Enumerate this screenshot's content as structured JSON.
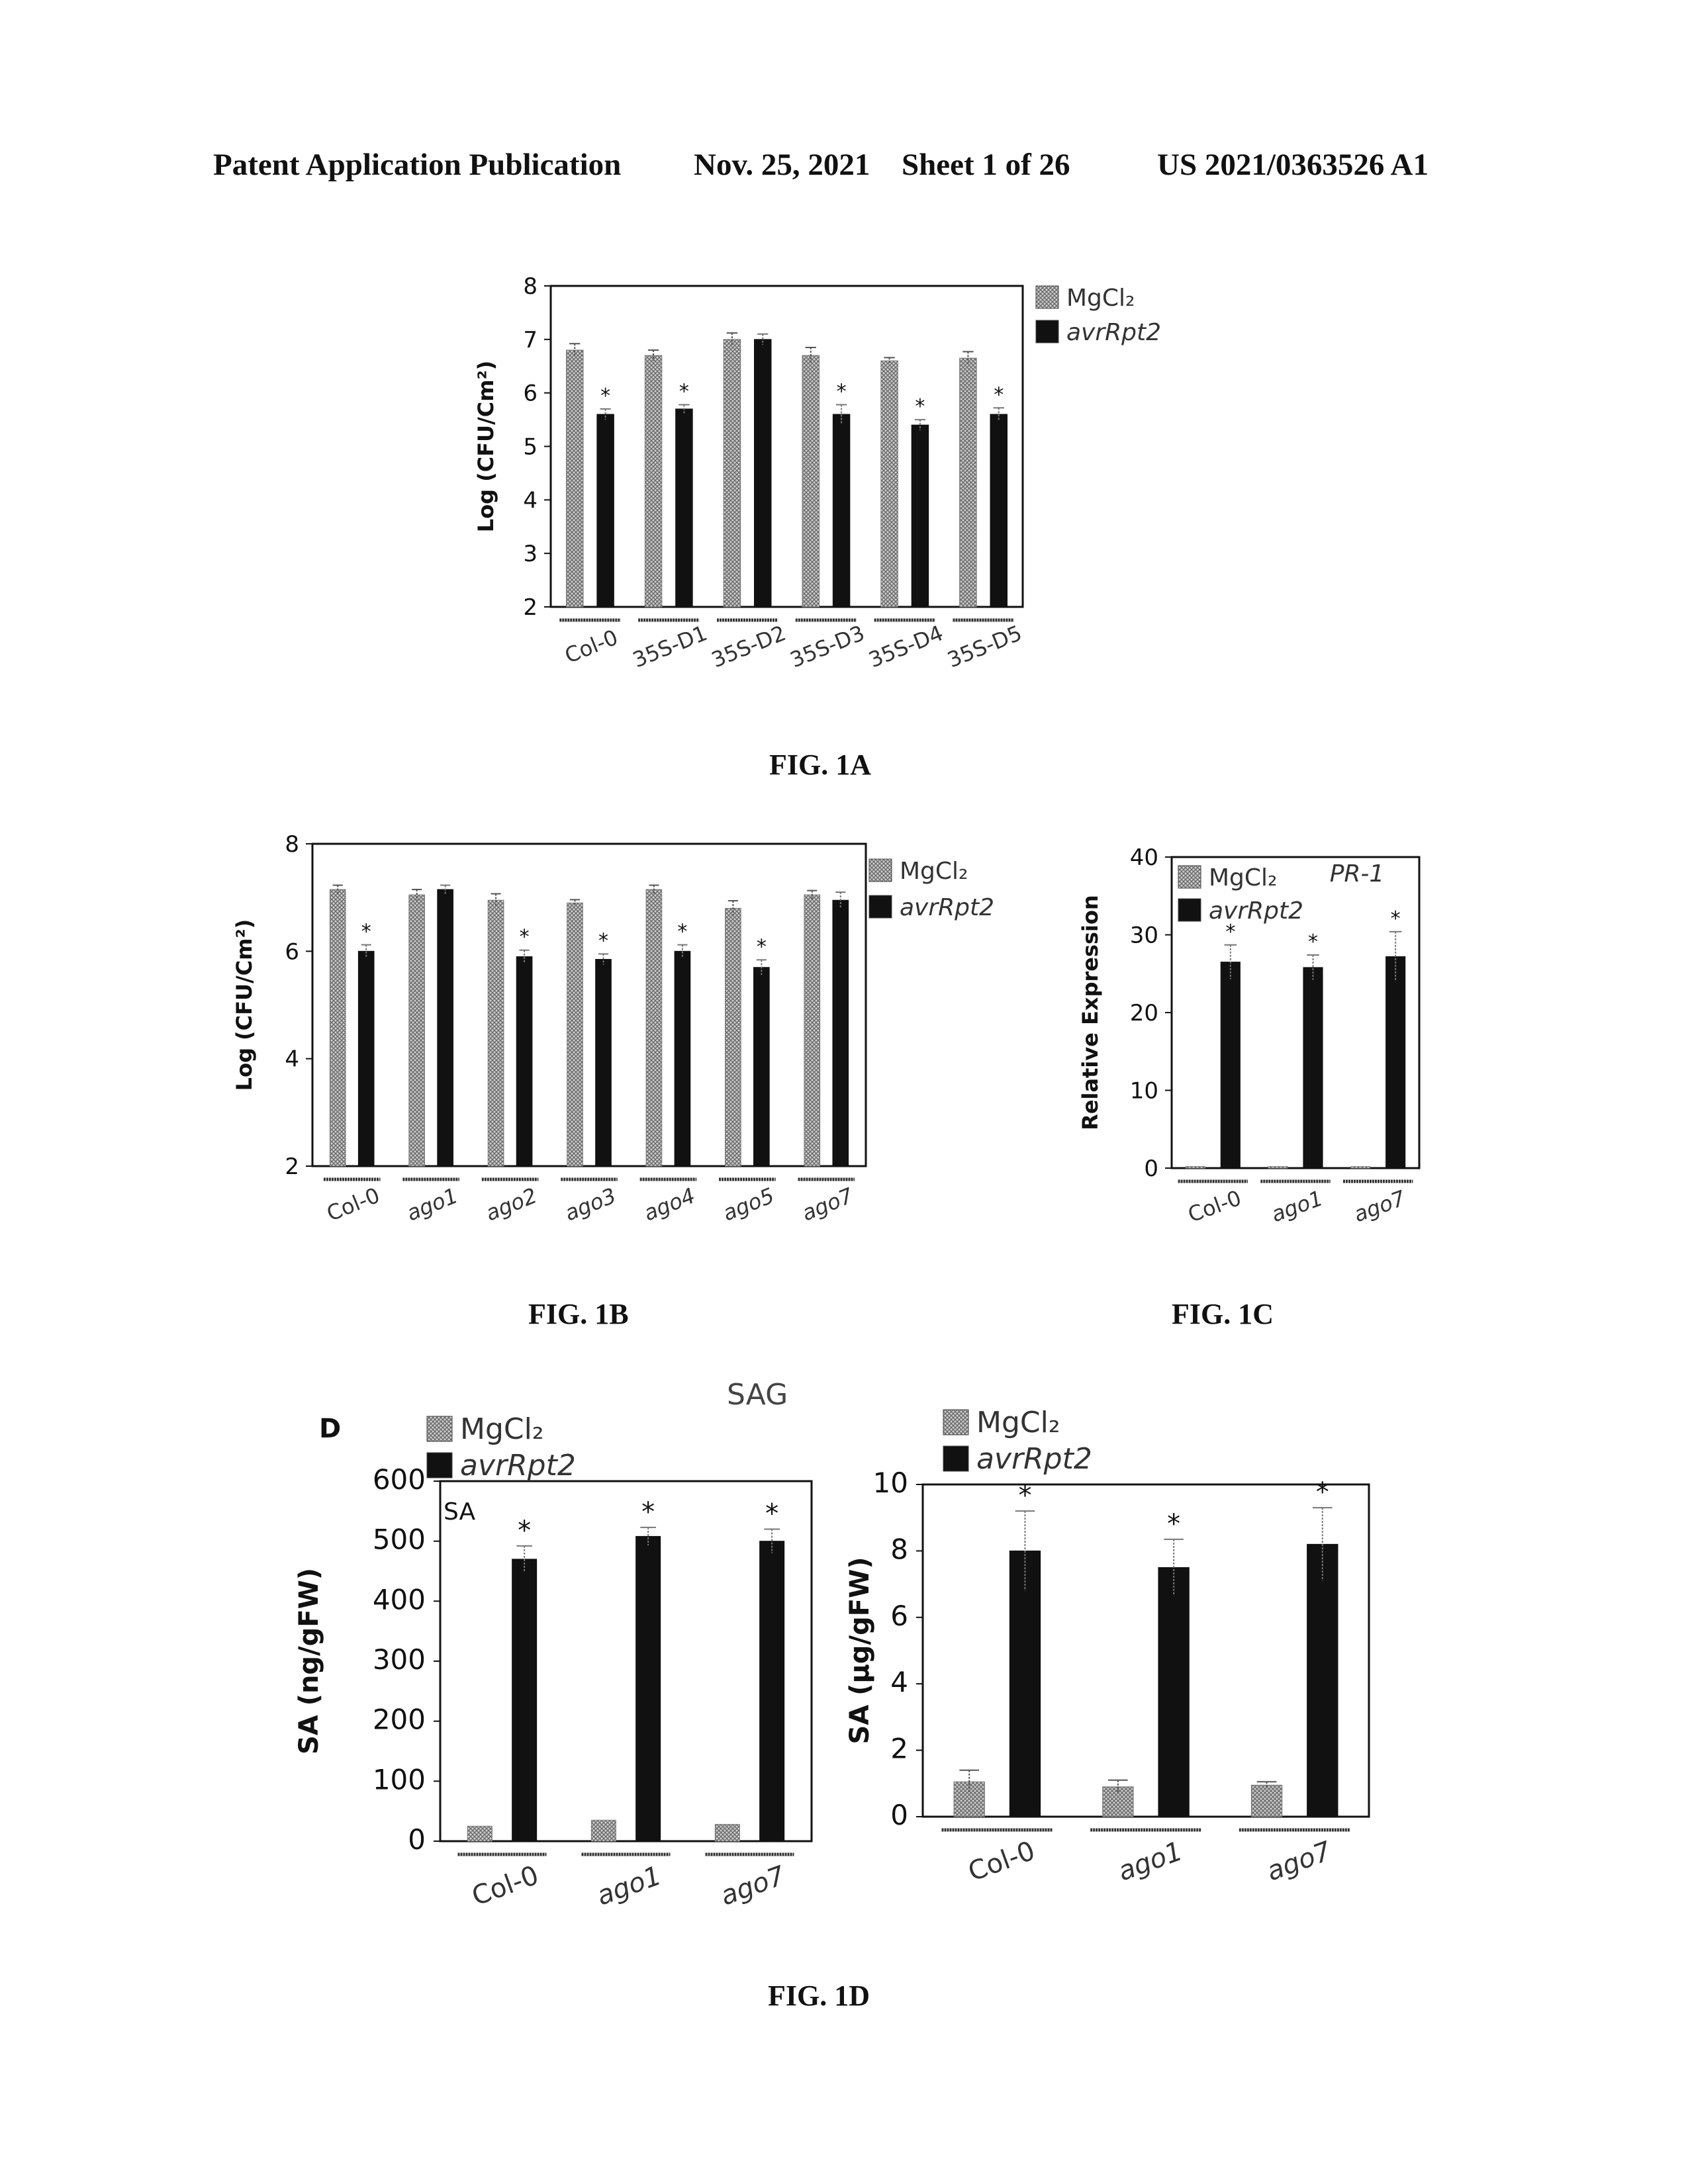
{
  "header": {
    "publication": "Patent Application Publication",
    "date": "Nov. 25, 2021",
    "sheet": "Sheet 1 of 26",
    "number": "US 2021/0363526 A1"
  },
  "captions": {
    "fig1a": "FIG. 1A",
    "fig1b": "FIG. 1B",
    "fig1c": "FIG. 1C",
    "fig1d": "FIG. 1D"
  },
  "panel_d": {
    "letter": "D",
    "sag_title": "SAG",
    "sa_inset": "SA"
  },
  "colors": {
    "mgcl2": "#a8a8a8",
    "avr": "#111111",
    "pattern": "crosshatch-grey"
  },
  "chart_data": [
    {
      "id": "fig1a",
      "type": "bar",
      "ylabel": "Log (CFU/Cm²)",
      "ylim": [
        2,
        8
      ],
      "yticks": [
        2,
        3,
        4,
        5,
        6,
        7,
        8
      ],
      "categories": [
        "Col-0",
        "35S-D1",
        "35S-D2",
        "35S-D3",
        "35S-D4",
        "35S-D5"
      ],
      "series": [
        {
          "name": "MgCl₂",
          "values": [
            6.8,
            6.7,
            7.0,
            6.7,
            6.6,
            6.65
          ],
          "errors": [
            0.12,
            0.1,
            0.12,
            0.15,
            0.06,
            0.12
          ]
        },
        {
          "name": "avrRpt2",
          "values": [
            5.6,
            5.7,
            7.0,
            5.6,
            5.4,
            5.6
          ],
          "errors": [
            0.1,
            0.08,
            0.1,
            0.18,
            0.1,
            0.12
          ]
        }
      ],
      "significance": [
        true,
        true,
        false,
        true,
        true,
        true
      ],
      "legend": "outside-right"
    },
    {
      "id": "fig1b",
      "type": "bar",
      "ylabel": "Log (CFU/Cm²)",
      "ylim": [
        2,
        8
      ],
      "yticks": [
        2,
        4,
        6,
        8
      ],
      "categories": [
        "Col-0",
        "ago1",
        "ago2",
        "ago3",
        "ago4",
        "ago5",
        "ago7"
      ],
      "series": [
        {
          "name": "MgCl₂",
          "values": [
            7.15,
            7.05,
            6.95,
            6.9,
            7.15,
            6.8,
            7.05
          ],
          "errors": [
            0.08,
            0.1,
            0.12,
            0.06,
            0.08,
            0.14,
            0.08
          ]
        },
        {
          "name": "avrRpt2",
          "values": [
            6.0,
            7.15,
            5.9,
            5.85,
            6.0,
            5.7,
            6.95
          ],
          "errors": [
            0.12,
            0.08,
            0.12,
            0.1,
            0.12,
            0.14,
            0.15
          ]
        }
      ],
      "significance": [
        true,
        false,
        true,
        true,
        true,
        true,
        false
      ],
      "legend": "outside-right"
    },
    {
      "id": "fig1c",
      "type": "bar",
      "title": "PR-1",
      "ylabel": "Relative Expression",
      "ylim": [
        0,
        40
      ],
      "yticks": [
        0,
        10,
        20,
        30,
        40
      ],
      "categories": [
        "Col-0",
        "ago1",
        "ago7"
      ],
      "series": [
        {
          "name": "MgCl₂",
          "values": [
            0.2,
            0.2,
            0.2
          ],
          "errors": [
            0,
            0,
            0
          ]
        },
        {
          "name": "avrRpt2",
          "values": [
            26.5,
            25.8,
            27.2
          ],
          "errors": [
            2.2,
            1.6,
            3.2
          ]
        }
      ],
      "significance": [
        true,
        true,
        true
      ],
      "legend": "top-left"
    },
    {
      "id": "fig1d_sa",
      "type": "bar",
      "ylabel": "SA (ng/gFW)",
      "ylim": [
        0,
        600
      ],
      "yticks": [
        0,
        100,
        200,
        300,
        400,
        500,
        600
      ],
      "categories": [
        "Col-0",
        "ago1",
        "ago7"
      ],
      "series": [
        {
          "name": "MgCl₂",
          "values": [
            25,
            35,
            28
          ],
          "errors": [
            0,
            0,
            0
          ]
        },
        {
          "name": "avrRpt2",
          "values": [
            470,
            508,
            500
          ],
          "errors": [
            22,
            15,
            20
          ]
        }
      ],
      "significance": [
        true,
        true,
        true
      ],
      "legend": "top"
    },
    {
      "id": "fig1d_sag",
      "type": "bar",
      "ylabel": "SA (µg/gFW)",
      "ylim": [
        0,
        10
      ],
      "yticks": [
        0,
        2,
        4,
        6,
        8,
        10
      ],
      "categories": [
        "Col-0",
        "ago1",
        "ago7"
      ],
      "series": [
        {
          "name": "MgCl₂",
          "values": [
            1.05,
            0.9,
            0.95
          ],
          "errors": [
            0.35,
            0.2,
            0.1
          ]
        },
        {
          "name": "avrRpt2",
          "values": [
            8.0,
            7.5,
            8.2
          ],
          "errors": [
            1.2,
            0.85,
            1.1
          ]
        }
      ],
      "significance": [
        true,
        true,
        true
      ],
      "legend": "top"
    }
  ]
}
